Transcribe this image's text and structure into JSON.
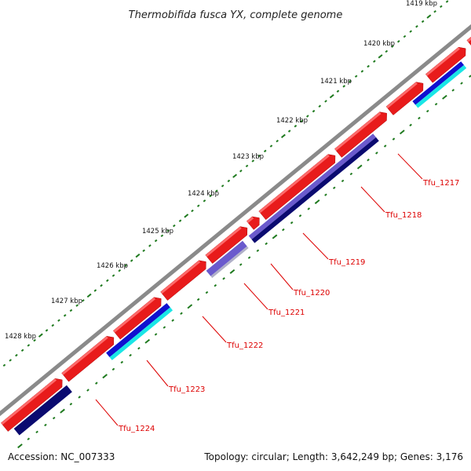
{
  "title": "Thermobifida fusca YX, complete genome",
  "accession": "Accession: NC_007333",
  "summary": "Topology: circular; Length: 3,642,249 bp; Genes: 3,176",
  "colors": {
    "backbone": "#8a8a8a",
    "ticks": "#1f7a1f",
    "gene_forward": "#e81b1b",
    "gene_forward_top": "#ff6a6a",
    "label": "#dd0000",
    "leader": "#dd0000",
    "track_blue": "#1010d0",
    "track_cyan": "#19e6e6",
    "track_navy": "#0a0a70",
    "track_slate": "#6a5acd",
    "track_grey": "#b0b0c8"
  },
  "kbp_labels": [
    "1419 kbp",
    "1420 kbp",
    "1421 kbp",
    "1422 kbp",
    "1423 kbp",
    "1424 kbp",
    "1425 kbp",
    "1426 kbp",
    "1427 kbp",
    "1428 kbp"
  ],
  "genes": [
    "Tfu_1217",
    "Tfu_1218",
    "Tfu_1219",
    "Tfu_1220",
    "Tfu_1221",
    "Tfu_1222",
    "Tfu_1223",
    "Tfu_1224"
  ]
}
